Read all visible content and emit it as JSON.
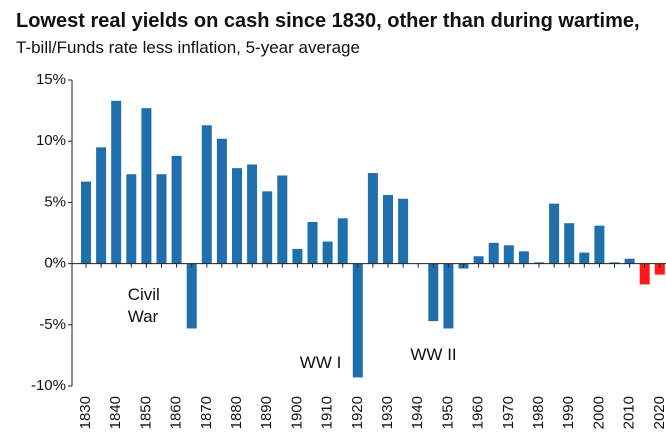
{
  "chart_data": {
    "type": "bar",
    "title": "Lowest real yields on cash since 1830, other than during wartime,",
    "subtitle": "T-bill/Funds rate less inflation, 5-year average",
    "categories": [
      "1830",
      null,
      "1840",
      null,
      "1850",
      null,
      "1860",
      null,
      "1870",
      null,
      "1880",
      null,
      "1890",
      null,
      "1900",
      null,
      "1910",
      null,
      "1920",
      null,
      "1930",
      null,
      "1940",
      null,
      "1950",
      null,
      "1960",
      null,
      "1970",
      null,
      "1980",
      null,
      "1990",
      null,
      "2000",
      null,
      "2010",
      null,
      "2020"
    ],
    "values": [
      6.7,
      9.5,
      13.3,
      7.3,
      12.7,
      7.3,
      8.8,
      -5.3,
      11.3,
      10.2,
      7.8,
      8.1,
      5.9,
      7.2,
      1.2,
      3.4,
      1.8,
      3.7,
      -9.3,
      7.4,
      5.6,
      5.3,
      0,
      -4.7,
      -5.3,
      -0.4,
      0.6,
      1.7,
      1.5,
      1.0,
      0.1,
      4.9,
      3.3,
      0.9,
      3.1,
      0.1,
      0.4,
      -1.7,
      -0.9
    ],
    "colors": [
      "#1f6fad",
      "#1f6fad",
      "#1f6fad",
      "#1f6fad",
      "#1f6fad",
      "#1f6fad",
      "#1f6fad",
      "#1f6fad",
      "#1f6fad",
      "#1f6fad",
      "#1f6fad",
      "#1f6fad",
      "#1f6fad",
      "#1f6fad",
      "#1f6fad",
      "#1f6fad",
      "#1f6fad",
      "#1f6fad",
      "#1f6fad",
      "#1f6fad",
      "#1f6fad",
      "#1f6fad",
      "#1f6fad",
      "#1f6fad",
      "#1f6fad",
      "#1f6fad",
      "#1f6fad",
      "#1f6fad",
      "#1f6fad",
      "#1f6fad",
      "#1f6fad",
      "#1f6fad",
      "#1f6fad",
      "#1f6fad",
      "#1f6fad",
      "#1f6fad",
      "#1f6fad",
      "#ff1a1a",
      "#ff1a1a"
    ],
    "ylim": [
      -10,
      15
    ],
    "yticks": [
      {
        "value": -10,
        "label": "-10%"
      },
      {
        "value": -5,
        "label": "-5%"
      },
      {
        "value": 0,
        "label": "0%"
      },
      {
        "value": 5,
        "label": "5%"
      },
      {
        "value": 10,
        "label": "10%"
      },
      {
        "value": 15,
        "label": "15%"
      }
    ],
    "annotations": [
      {
        "text": "Civil War",
        "index": 7
      },
      {
        "text": "WW I",
        "index": 18
      },
      {
        "text": "WW II",
        "index": 24
      }
    ],
    "grid": false
  }
}
